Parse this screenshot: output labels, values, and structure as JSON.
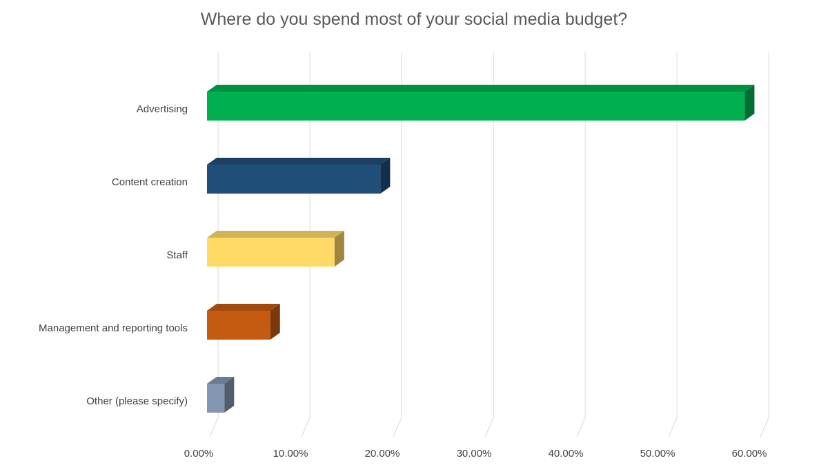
{
  "chart_data": {
    "type": "bar",
    "orientation": "horizontal",
    "style": "3d",
    "title": "Where do you spend most of your social media budget?",
    "xlabel": "",
    "ylabel": "",
    "categories": [
      "Advertising",
      "Content creation",
      "Staff",
      "Management and reporting tools",
      "Other (please specify)"
    ],
    "values": [
      58.6,
      18.9,
      13.9,
      6.9,
      1.9
    ],
    "colors": [
      "#00b050",
      "#1f4e79",
      "#ffd966",
      "#c55a11",
      "#8497b0"
    ],
    "xlim": [
      0,
      60
    ],
    "xticks": [
      0,
      10,
      20,
      30,
      40,
      50,
      60
    ],
    "tick_labels": [
      "0.00%",
      "10.00%",
      "20.00%",
      "30.00%",
      "40.00%",
      "50.00%",
      "60.00%"
    ],
    "grid": true,
    "legend": "none"
  }
}
